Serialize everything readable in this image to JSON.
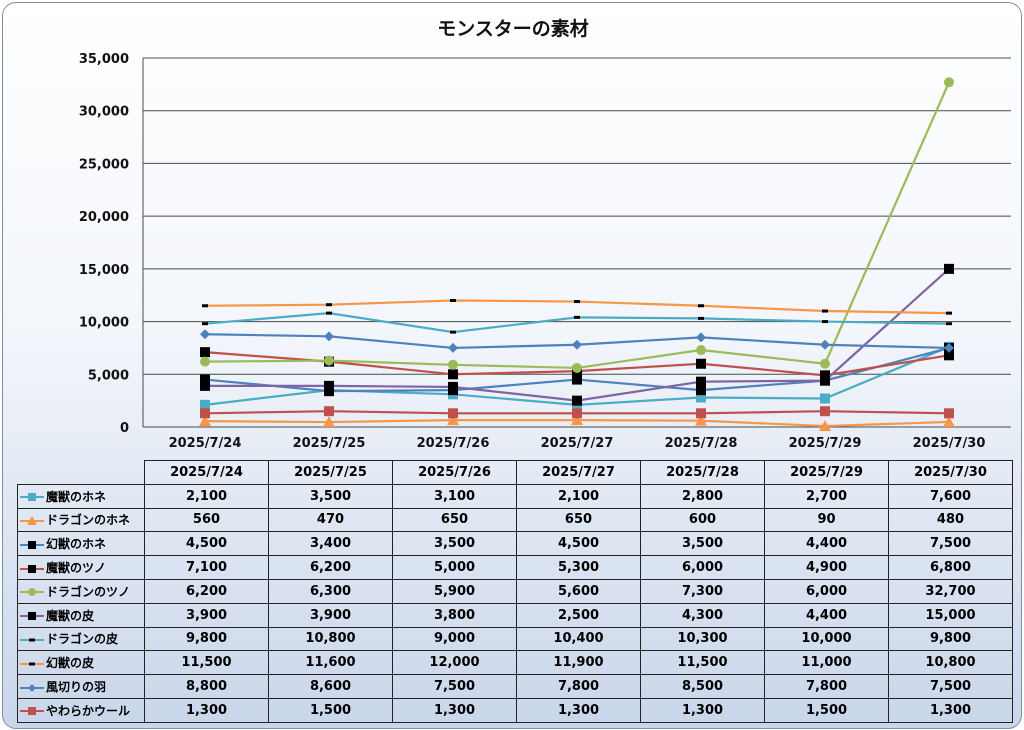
{
  "chart_data": {
    "type": "line",
    "title": "モンスターの素材",
    "categories": [
      "2025/7/24",
      "2025/7/25",
      "2025/7/26",
      "2025/7/27",
      "2025/7/28",
      "2025/7/29",
      "2025/7/30"
    ],
    "ylim": [
      0,
      35000
    ],
    "yticks": [
      "0",
      "5,000",
      "10,000",
      "15,000",
      "20,000",
      "25,000",
      "30,000",
      "35,000"
    ],
    "ytick_values": [
      0,
      5000,
      10000,
      15000,
      20000,
      25000,
      30000,
      35000
    ],
    "grid": true,
    "legend": "data-table",
    "series": [
      {
        "name": "魔獣のホネ",
        "color": "#4bacc6",
        "marker": "square",
        "values": [
          2100,
          3500,
          3100,
          2100,
          2800,
          2700,
          7600
        ],
        "labels": [
          "2,100",
          "3,500",
          "3,100",
          "2,100",
          "2,800",
          "2,700",
          "7,600"
        ]
      },
      {
        "name": "ドラゴンのホネ",
        "color": "#f79646",
        "marker": "triangle",
        "values": [
          560,
          470,
          650,
          650,
          600,
          90,
          480
        ],
        "labels": [
          "560",
          "470",
          "650",
          "650",
          "600",
          "90",
          "480"
        ]
      },
      {
        "name": "幻獣のホネ",
        "color": "#4f81bd",
        "marker": "square-black",
        "values": [
          4500,
          3400,
          3500,
          4500,
          3500,
          4400,
          7500
        ],
        "labels": [
          "4,500",
          "3,400",
          "3,500",
          "4,500",
          "3,500",
          "4,400",
          "7,500"
        ]
      },
      {
        "name": "魔獣のツノ",
        "color": "#c0504d",
        "marker": "square-black",
        "values": [
          7100,
          6200,
          5000,
          5300,
          6000,
          4900,
          6800
        ],
        "labels": [
          "7,100",
          "6,200",
          "5,000",
          "5,300",
          "6,000",
          "4,900",
          "6,800"
        ]
      },
      {
        "name": "ドラゴンのツノ",
        "color": "#9bbb59",
        "marker": "circle",
        "values": [
          6200,
          6300,
          5900,
          5600,
          7300,
          6000,
          32700
        ],
        "labels": [
          "6,200",
          "6,300",
          "5,900",
          "5,600",
          "7,300",
          "6,000",
          "32,700"
        ]
      },
      {
        "name": "魔獣の皮",
        "color": "#8064a2",
        "marker": "square-black",
        "values": [
          3900,
          3900,
          3800,
          2500,
          4300,
          4400,
          15000
        ],
        "labels": [
          "3,900",
          "3,900",
          "3,800",
          "2,500",
          "4,300",
          "4,400",
          "15,000"
        ]
      },
      {
        "name": "ドラゴンの皮",
        "color": "#4bacc6",
        "marker": "dash",
        "values": [
          9800,
          10800,
          9000,
          10400,
          10300,
          10000,
          9800
        ],
        "labels": [
          "9,800",
          "10,800",
          "9,000",
          "10,400",
          "10,300",
          "10,000",
          "9,800"
        ]
      },
      {
        "name": "幻獣の皮",
        "color": "#f79646",
        "marker": "dash",
        "values": [
          11500,
          11600,
          12000,
          11900,
          11500,
          11000,
          10800
        ],
        "labels": [
          "11,500",
          "11,600",
          "12,000",
          "11,900",
          "11,500",
          "11,000",
          "10,800"
        ]
      },
      {
        "name": "風切りの羽",
        "color": "#4f81bd",
        "marker": "diamond",
        "values": [
          8800,
          8600,
          7500,
          7800,
          8500,
          7800,
          7500
        ],
        "labels": [
          "8,800",
          "8,600",
          "7,500",
          "7,800",
          "8,500",
          "7,800",
          "7,500"
        ]
      },
      {
        "name": "やわらかウール",
        "color": "#c0504d",
        "marker": "square",
        "values": [
          1300,
          1500,
          1300,
          1300,
          1300,
          1500,
          1300
        ],
        "labels": [
          "1,300",
          "1,500",
          "1,300",
          "1,300",
          "1,300",
          "1,500",
          "1,300"
        ]
      }
    ]
  }
}
